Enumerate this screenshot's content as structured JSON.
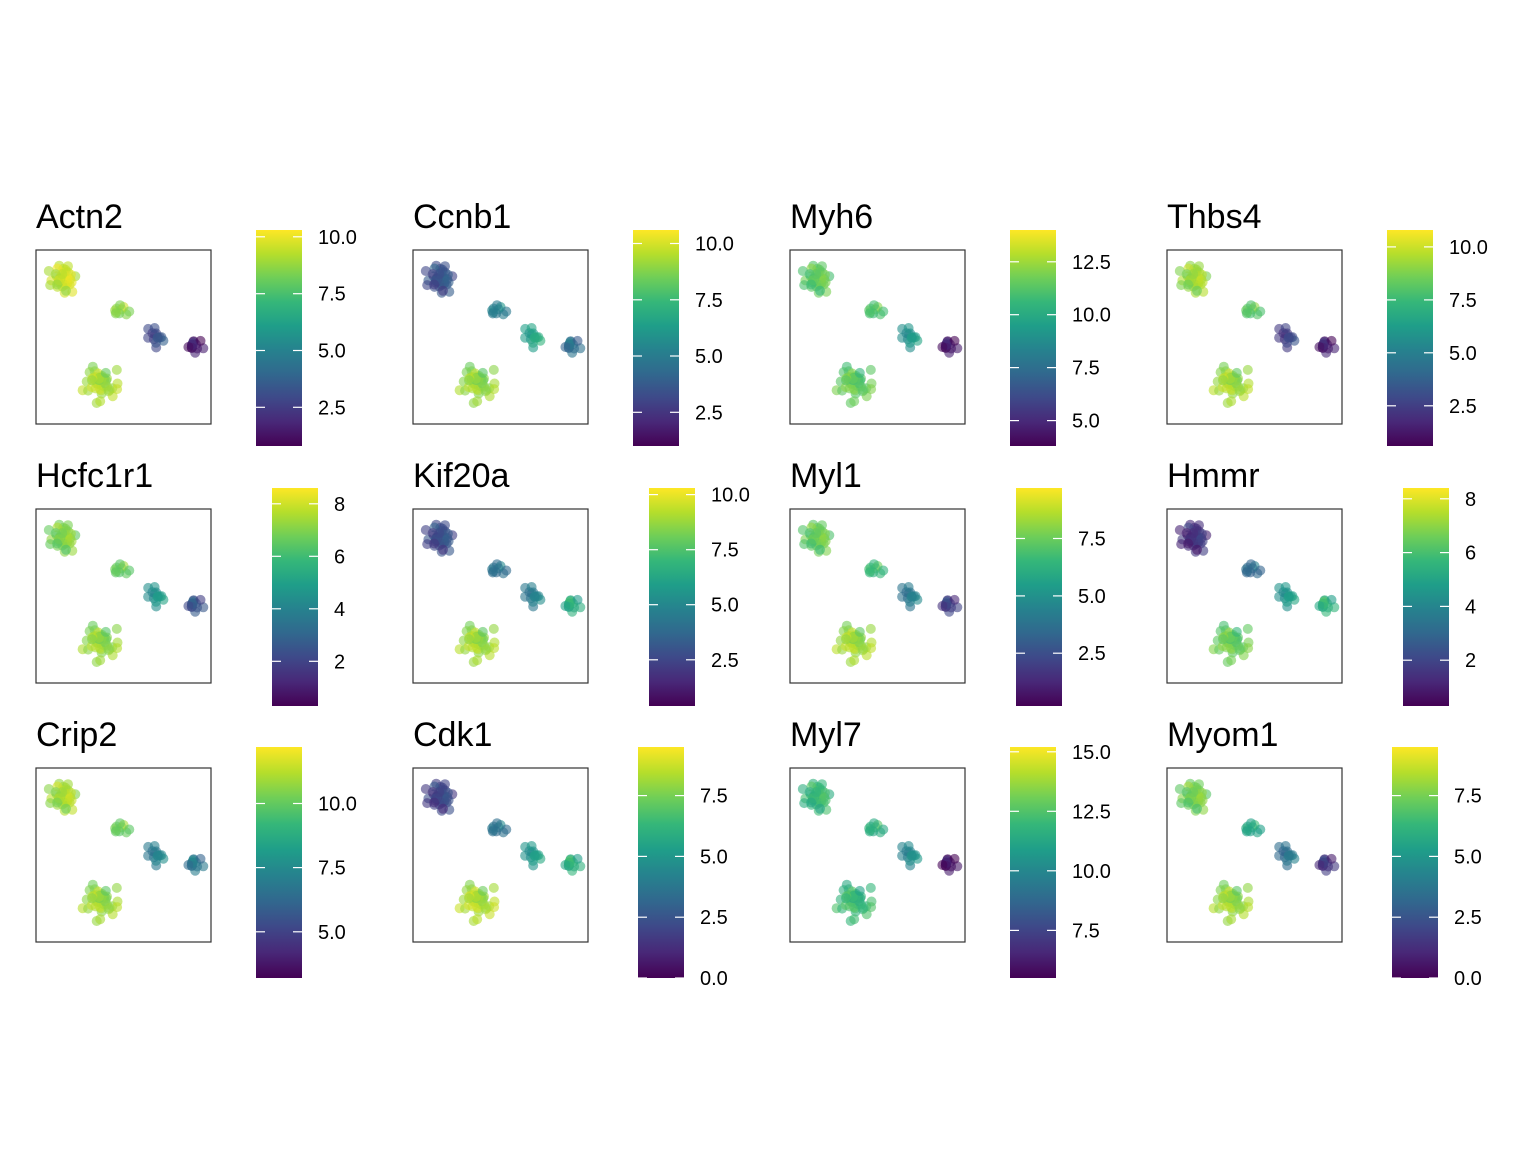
{
  "figure": {
    "type": "faceted-scatter-colorbar",
    "colormap": "viridis",
    "colormap_stops": [
      "#440154",
      "#482878",
      "#3e4989",
      "#31688e",
      "#26828e",
      "#1f9e89",
      "#35b779",
      "#6ece58",
      "#b5de2b",
      "#fde725"
    ],
    "frame_color": "#333333",
    "point_alpha": 0.6
  },
  "chart_data": [
    {
      "type": "scatter",
      "title": "Actn2",
      "color_range": [
        0.8,
        10.3
      ],
      "colorbar_ticks": [
        "2.5",
        "5.0",
        "7.5",
        "10.0"
      ],
      "color_profile": [
        9.5,
        8.5,
        3.0,
        1.5,
        9.0
      ],
      "xlim": [
        0,
        10
      ],
      "ylim": [
        0,
        10
      ],
      "grid": false,
      "legend": "colorbar-right"
    },
    {
      "type": "scatter",
      "title": "Ccnb1",
      "color_range": [
        1.0,
        10.6
      ],
      "colorbar_ticks": [
        "2.5",
        "5.0",
        "7.5",
        "10.0"
      ],
      "color_profile": [
        3.5,
        5.0,
        6.5,
        4.5,
        9.0
      ],
      "xlim": [
        0,
        10
      ],
      "ylim": [
        0,
        10
      ],
      "grid": false,
      "legend": "colorbar-right"
    },
    {
      "type": "scatter",
      "title": "Myh6",
      "color_range": [
        3.8,
        14.0
      ],
      "colorbar_ticks": [
        "5.0",
        "7.5",
        "10.0",
        "12.5"
      ],
      "color_profile": [
        11.5,
        11.0,
        9.0,
        4.5,
        11.5
      ],
      "xlim": [
        0,
        10
      ],
      "ylim": [
        0,
        10
      ],
      "grid": false,
      "legend": "colorbar-right"
    },
    {
      "type": "scatter",
      "title": "Thbs4",
      "color_range": [
        0.6,
        10.8
      ],
      "colorbar_ticks": [
        "2.5",
        "5.0",
        "7.5",
        "10.0"
      ],
      "color_profile": [
        9.3,
        8.0,
        2.5,
        1.5,
        9.3
      ],
      "xlim": [
        0,
        10
      ],
      "ylim": [
        0,
        10
      ],
      "grid": false,
      "legend": "colorbar-right"
    },
    {
      "type": "scatter",
      "title": "Hcfc1r1",
      "color_range": [
        0.3,
        8.6
      ],
      "colorbar_ticks": [
        "2",
        "4",
        "6",
        "8"
      ],
      "color_profile": [
        7.0,
        6.5,
        4.5,
        2.5,
        7.2
      ],
      "xlim": [
        0,
        10
      ],
      "ylim": [
        0,
        10
      ],
      "grid": false,
      "legend": "colorbar-right"
    },
    {
      "type": "scatter",
      "title": "Kif20a",
      "color_range": [
        0.4,
        10.3
      ],
      "colorbar_ticks": [
        "2.5",
        "5.0",
        "7.5",
        "10.0"
      ],
      "color_profile": [
        2.8,
        4.0,
        4.5,
        6.5,
        8.8
      ],
      "xlim": [
        0,
        10
      ],
      "ylim": [
        0,
        10
      ],
      "grid": false,
      "legend": "colorbar-right"
    },
    {
      "type": "scatter",
      "title": "Myl1",
      "color_range": [
        0.2,
        9.7
      ],
      "colorbar_ticks": [
        "2.5",
        "5.0",
        "7.5"
      ],
      "color_profile": [
        7.5,
        6.5,
        4.0,
        2.0,
        8.3
      ],
      "xlim": [
        0,
        10
      ],
      "ylim": [
        0,
        10
      ],
      "grid": false,
      "legend": "colorbar-right"
    },
    {
      "type": "scatter",
      "title": "Hmmr",
      "color_range": [
        0.3,
        8.4
      ],
      "colorbar_ticks": [
        "2",
        "4",
        "6",
        "8"
      ],
      "color_profile": [
        1.5,
        3.0,
        4.5,
        5.5,
        6.5
      ],
      "xlim": [
        0,
        10
      ],
      "ylim": [
        0,
        10
      ],
      "grid": false,
      "legend": "colorbar-right"
    },
    {
      "type": "scatter",
      "title": "Crip2",
      "color_range": [
        3.2,
        12.2
      ],
      "colorbar_ticks": [
        "5.0",
        "7.5",
        "10.0"
      ],
      "color_profile": [
        11.0,
        10.0,
        7.0,
        6.8,
        10.8
      ],
      "xlim": [
        0,
        10
      ],
      "ylim": [
        0,
        10
      ],
      "grid": false,
      "legend": "colorbar-right"
    },
    {
      "type": "scatter",
      "title": "Cdk1",
      "color_range": [
        0.0,
        9.5
      ],
      "colorbar_ticks": [
        "0.0",
        "2.5",
        "5.0",
        "7.5"
      ],
      "color_profile": [
        2.0,
        3.5,
        5.0,
        6.0,
        8.3
      ],
      "xlim": [
        0,
        10
      ],
      "ylim": [
        0,
        10
      ],
      "grid": false,
      "legend": "colorbar-right"
    },
    {
      "type": "scatter",
      "title": "Myl7",
      "color_range": [
        5.5,
        15.2
      ],
      "colorbar_ticks": [
        "7.5",
        "10.0",
        "12.5",
        "15.0"
      ],
      "color_profile": [
        12.0,
        11.5,
        10.0,
        6.0,
        12.0
      ],
      "xlim": [
        0,
        10
      ],
      "ylim": [
        0,
        10
      ],
      "grid": false,
      "legend": "colorbar-right"
    },
    {
      "type": "scatter",
      "title": "Myom1",
      "color_range": [
        0.0,
        9.5
      ],
      "colorbar_ticks": [
        "0.0",
        "2.5",
        "5.0",
        "7.5"
      ],
      "color_profile": [
        7.5,
        5.5,
        3.5,
        1.5,
        8.0
      ],
      "xlim": [
        0,
        10
      ],
      "ylim": [
        0,
        10
      ],
      "grid": false,
      "legend": "colorbar-right"
    }
  ]
}
